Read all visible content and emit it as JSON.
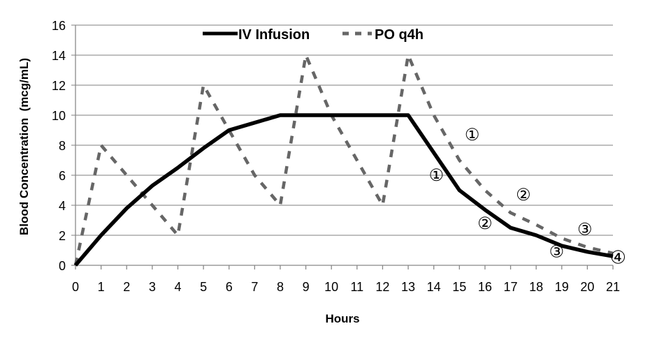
{
  "chart_data": {
    "type": "line",
    "title": "",
    "xlabel": "Hours",
    "ylabel": "Blood Concentration  (mcg/mL)",
    "xlim": [
      0,
      21
    ],
    "ylim": [
      0,
      16
    ],
    "grid": true,
    "legend_placement": "top-center",
    "x_ticks": [
      "0",
      "1",
      "2",
      "3",
      "4",
      "5",
      "6",
      "7",
      "8",
      "9",
      "10",
      "11",
      "12",
      "13",
      "14",
      "15",
      "16",
      "17",
      "18",
      "19",
      "20",
      "21"
    ],
    "y_ticks": [
      "0",
      "2",
      "4",
      "6",
      "8",
      "10",
      "12",
      "14",
      "16"
    ],
    "x": [
      0,
      1,
      2,
      3,
      4,
      5,
      6,
      7,
      8,
      9,
      10,
      11,
      12,
      13,
      14,
      15,
      16,
      17,
      18,
      19,
      20,
      21
    ],
    "series": [
      {
        "name": "IV Infusion",
        "style": "solid",
        "color": "#000000",
        "values": [
          0,
          2,
          3.8,
          5.3,
          6.5,
          7.8,
          9,
          9.5,
          10,
          10,
          10,
          10,
          10,
          10,
          7.5,
          5,
          3.7,
          2.5,
          2,
          1.3,
          0.9,
          0.6
        ]
      },
      {
        "name": "PO q4h",
        "style": "dashed",
        "color": "#666666",
        "values": [
          0,
          8,
          6,
          4,
          2,
          12,
          9,
          6,
          4,
          14,
          10,
          7,
          4,
          14,
          10,
          7,
          5,
          3.5,
          2.7,
          1.8,
          1.2,
          0.8
        ]
      }
    ],
    "annotations": [
      {
        "label": "①",
        "x": 15.5,
        "y": 8.7
      },
      {
        "label": "②",
        "x": 17.5,
        "y": 4.7
      },
      {
        "label": "③",
        "x": 19.9,
        "y": 2.4
      },
      {
        "label": "①",
        "x": 14.1,
        "y": 6.0
      },
      {
        "label": "②",
        "x": 16.0,
        "y": 2.8
      },
      {
        "label": "③",
        "x": 18.8,
        "y": 0.9
      },
      {
        "label": "④",
        "x": 21.2,
        "y": 0.5
      }
    ]
  }
}
